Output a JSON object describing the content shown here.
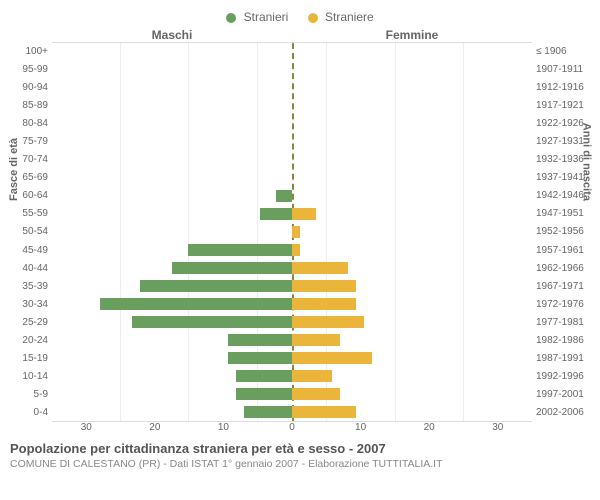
{
  "legend": {
    "male": {
      "label": "Stranieri",
      "color": "#6a9e5e"
    },
    "female": {
      "label": "Straniere",
      "color": "#eab53a"
    }
  },
  "header": {
    "male": "Maschi",
    "female": "Femmine"
  },
  "axis": {
    "left_label": "Fasce di età",
    "right_label": "Anni di nascita"
  },
  "age_groups": [
    {
      "age": "100+",
      "birth": "≤ 1906",
      "m": 0,
      "f": 0
    },
    {
      "age": "95-99",
      "birth": "1907-1911",
      "m": 0,
      "f": 0
    },
    {
      "age": "90-94",
      "birth": "1912-1916",
      "m": 0,
      "f": 0
    },
    {
      "age": "85-89",
      "birth": "1917-1921",
      "m": 0,
      "f": 0
    },
    {
      "age": "80-84",
      "birth": "1922-1926",
      "m": 0,
      "f": 0
    },
    {
      "age": "75-79",
      "birth": "1927-1931",
      "m": 0,
      "f": 0
    },
    {
      "age": "70-74",
      "birth": "1932-1936",
      "m": 0,
      "f": 0
    },
    {
      "age": "65-69",
      "birth": "1937-1941",
      "m": 0,
      "f": 0
    },
    {
      "age": "60-64",
      "birth": "1942-1946",
      "m": 2,
      "f": 0
    },
    {
      "age": "55-59",
      "birth": "1947-1951",
      "m": 4,
      "f": 3
    },
    {
      "age": "50-54",
      "birth": "1952-1956",
      "m": 0,
      "f": 1
    },
    {
      "age": "45-49",
      "birth": "1957-1961",
      "m": 13,
      "f": 1
    },
    {
      "age": "40-44",
      "birth": "1962-1966",
      "m": 15,
      "f": 7
    },
    {
      "age": "35-39",
      "birth": "1967-1971",
      "m": 19,
      "f": 8
    },
    {
      "age": "30-34",
      "birth": "1972-1976",
      "m": 24,
      "f": 8
    },
    {
      "age": "25-29",
      "birth": "1977-1981",
      "m": 20,
      "f": 9
    },
    {
      "age": "20-24",
      "birth": "1982-1986",
      "m": 8,
      "f": 6
    },
    {
      "age": "15-19",
      "birth": "1987-1991",
      "m": 8,
      "f": 10
    },
    {
      "age": "10-14",
      "birth": "1992-1996",
      "m": 7,
      "f": 5
    },
    {
      "age": "5-9",
      "birth": "1997-2001",
      "m": 7,
      "f": 6
    },
    {
      "age": "0-4",
      "birth": "2002-2006",
      "m": 6,
      "f": 8
    }
  ],
  "x_ticks": [
    "30",
    "20",
    "10",
    "0",
    "10",
    "20",
    "30"
  ],
  "x_max": 30,
  "colors": {
    "grid": "#eeeeee",
    "center_line": "#888844",
    "text": "#666666",
    "background": "#ffffff"
  },
  "title": "Popolazione per cittadinanza straniera per età e sesso - 2007",
  "subtitle": "COMUNE DI CALESTANO (PR) - Dati ISTAT 1° gennaio 2007 - Elaborazione TUTTITALIA.IT"
}
